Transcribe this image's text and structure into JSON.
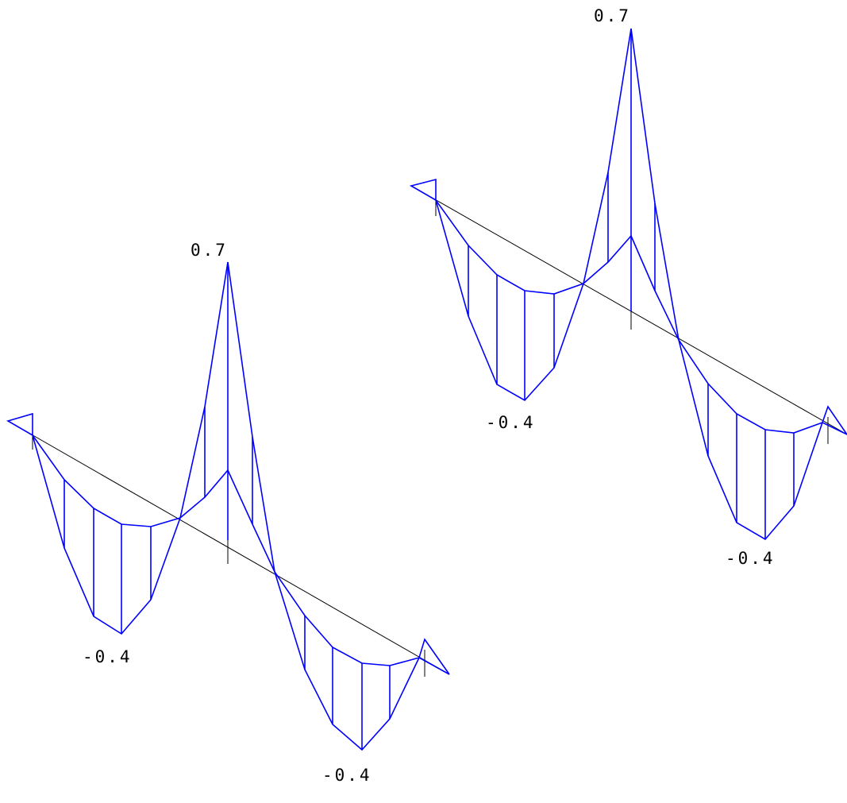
{
  "diagrams": [
    {
      "name": "left-diagram",
      "labels": {
        "peak": "0.7",
        "min_left": "-0.4",
        "min_right": "-0.4"
      }
    },
    {
      "name": "right-diagram",
      "labels": {
        "peak": "0.7",
        "min_left": "-0.4",
        "min_right": "-0.4"
      }
    }
  ],
  "colors": {
    "diagram": "#0000ff",
    "axis": "#000000",
    "background": "#ffffff"
  }
}
